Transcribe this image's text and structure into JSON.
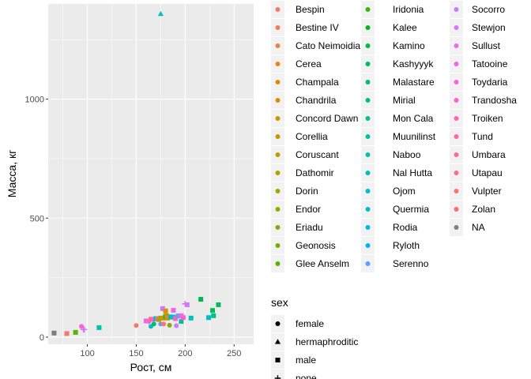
{
  "chart_data": {
    "type": "scatter",
    "xlabel": "Рост, см",
    "ylabel": "Масса, кг",
    "xlim": [
      60,
      270
    ],
    "ylim": [
      -30,
      1400
    ],
    "x_ticks": [
      100,
      150,
      200,
      250
    ],
    "y_ticks": [
      0,
      500,
      1000
    ],
    "grid": true,
    "color_legend": {
      "title": "",
      "entries": [
        {
          "label": "Bespin",
          "color": "#F8766D"
        },
        {
          "label": "Bestine IV",
          "color": "#F37B59"
        },
        {
          "label": "Cato Neimoidia",
          "color": "#ED8141"
        },
        {
          "label": "Cerea",
          "color": "#E7861B"
        },
        {
          "label": "Champala",
          "color": "#E08B00"
        },
        {
          "label": "Chandrila",
          "color": "#D89000"
        },
        {
          "label": "Concord Dawn",
          "color": "#CF9400"
        },
        {
          "label": "Corellia",
          "color": "#C59900"
        },
        {
          "label": "Coruscant",
          "color": "#BB9D00"
        },
        {
          "label": "Dathomir",
          "color": "#AFA100"
        },
        {
          "label": "Dorin",
          "color": "#A3A500"
        },
        {
          "label": "Endor",
          "color": "#95A900"
        },
        {
          "label": "Eriadu",
          "color": "#85AD00"
        },
        {
          "label": "Geonosis",
          "color": "#72B000"
        },
        {
          "label": "Glee Anselm",
          "color": "#5BB300"
        },
        {
          "label": "Iridonia",
          "color": "#39B600"
        },
        {
          "label": "Kalee",
          "color": "#00B81F"
        },
        {
          "label": "Kamino",
          "color": "#00BA42"
        },
        {
          "label": "Kashyyyk",
          "color": "#00BC59"
        },
        {
          "label": "Malastare",
          "color": "#00BE6C"
        },
        {
          "label": "Mirial",
          "color": "#00BF7D"
        },
        {
          "label": "Mon Cala",
          "color": "#00C08D"
        },
        {
          "label": "Muunilinst",
          "color": "#00C19C"
        },
        {
          "label": "Naboo",
          "color": "#00C1AA"
        },
        {
          "label": "Nal Hutta",
          "color": "#00C0B8"
        },
        {
          "label": "Ojom",
          "color": "#00BFC4"
        },
        {
          "label": "Quermia",
          "color": "#00BCD1"
        },
        {
          "label": "Rodia",
          "color": "#00B9E3"
        },
        {
          "label": "Ryloth",
          "color": "#00B5EE"
        },
        {
          "label": "Serenno",
          "color": "#619CFF"
        },
        {
          "label": "Socorro",
          "color": "#C77CFF"
        },
        {
          "label": "Stewjon",
          "color": "#D774F8"
        },
        {
          "label": "Sullust",
          "color": "#E46DF0"
        },
        {
          "label": "Tatooine",
          "color": "#F066EA"
        },
        {
          "label": "Toydaria",
          "color": "#F963DC"
        },
        {
          "label": "Trandosha",
          "color": "#FF61CC"
        },
        {
          "label": "Troiken",
          "color": "#FF62BC"
        },
        {
          "label": "Tund",
          "color": "#FF65AC"
        },
        {
          "label": "Umbara",
          "color": "#FE6A9A"
        },
        {
          "label": "Utapau",
          "color": "#FA6F87"
        },
        {
          "label": "Vulpter",
          "color": "#F8766D"
        },
        {
          "label": "Zolan",
          "color": "#F4706F"
        },
        {
          "label": "NA",
          "color": "#7F7F7F"
        }
      ]
    },
    "shape_legend": {
      "title": "sex",
      "entries": [
        {
          "label": "female",
          "shape": "circle"
        },
        {
          "label": "hermaphroditic",
          "shape": "triangle"
        },
        {
          "label": "male",
          "shape": "square"
        },
        {
          "label": "none",
          "shape": "plus"
        }
      ]
    },
    "points": [
      {
        "x": 175,
        "y": 1358,
        "shape": "triangle",
        "color": "#00BFC4"
      },
      {
        "x": 66,
        "y": 17,
        "shape": "square",
        "color": "#7F7F7F"
      },
      {
        "x": 79,
        "y": 15,
        "shape": "square",
        "color": "#F8766D"
      },
      {
        "x": 88,
        "y": 20,
        "shape": "square",
        "color": "#5BB300"
      },
      {
        "x": 94,
        "y": 45,
        "shape": "circle",
        "color": "#FF61CC"
      },
      {
        "x": 96,
        "y": 32,
        "shape": "plus",
        "color": "#F066EA"
      },
      {
        "x": 97,
        "y": 32,
        "shape": "plus",
        "color": "#C77CFF"
      },
      {
        "x": 112,
        "y": 40,
        "shape": "square",
        "color": "#00C1AA"
      },
      {
        "x": 150,
        "y": 49,
        "shape": "circle",
        "color": "#F8766D"
      },
      {
        "x": 160,
        "y": 68,
        "shape": "square",
        "color": "#F066EA"
      },
      {
        "x": 163,
        "y": 65,
        "shape": "circle",
        "color": "#F966DC"
      },
      {
        "x": 165,
        "y": 45,
        "shape": "circle",
        "color": "#00BFC4"
      },
      {
        "x": 165,
        "y": 75,
        "shape": "square",
        "color": "#F8766D"
      },
      {
        "x": 167,
        "y": 75,
        "shape": "square",
        "color": "#FF61CC"
      },
      {
        "x": 168,
        "y": 55,
        "shape": "circle",
        "color": "#00BE6C"
      },
      {
        "x": 170,
        "y": 78,
        "shape": "square",
        "color": "#00C1AA"
      },
      {
        "x": 171,
        "y": 77,
        "shape": "square",
        "color": "#00BFC4"
      },
      {
        "x": 172,
        "y": 77,
        "shape": "square",
        "color": "#F066EA"
      },
      {
        "x": 173,
        "y": 74,
        "shape": "square",
        "color": "#AFA100"
      },
      {
        "x": 175,
        "y": 80,
        "shape": "square",
        "color": "#BB9D00"
      },
      {
        "x": 175,
        "y": 55,
        "shape": "circle",
        "color": "#619CFF"
      },
      {
        "x": 177,
        "y": 120,
        "shape": "square",
        "color": "#C77CFF"
      },
      {
        "x": 178,
        "y": 80,
        "shape": "square",
        "color": "#D89000"
      },
      {
        "x": 178,
        "y": 55,
        "shape": "circle",
        "color": "#F8766D"
      },
      {
        "x": 180,
        "y": 110,
        "shape": "square",
        "color": "#E08B00"
      },
      {
        "x": 180,
        "y": 87,
        "shape": "square",
        "color": "#00BA42"
      },
      {
        "x": 181,
        "y": 90,
        "shape": "square",
        "color": "#AFA100"
      },
      {
        "x": 182,
        "y": 80,
        "shape": "square",
        "color": "#C59900"
      },
      {
        "x": 183,
        "y": 84,
        "shape": "square",
        "color": "#ED8141"
      },
      {
        "x": 184,
        "y": 50,
        "shape": "circle",
        "color": "#85AD00"
      },
      {
        "x": 185,
        "y": 85,
        "shape": "square",
        "color": "#00C1AA"
      },
      {
        "x": 188,
        "y": 84,
        "shape": "square",
        "color": "#00B9E3"
      },
      {
        "x": 188,
        "y": 113,
        "shape": "square",
        "color": "#F066EA"
      },
      {
        "x": 190,
        "y": 78,
        "shape": "square",
        "color": "#FF65AC"
      },
      {
        "x": 191,
        "y": 48,
        "shape": "circle",
        "color": "#C77CFF"
      },
      {
        "x": 193,
        "y": 89,
        "shape": "square",
        "color": "#619CFF"
      },
      {
        "x": 196,
        "y": 66,
        "shape": "square",
        "color": "#00C19C"
      },
      {
        "x": 196,
        "y": 90,
        "shape": "square",
        "color": "#E46DF0"
      },
      {
        "x": 198,
        "y": 82,
        "shape": "square",
        "color": "#FF61CC"
      },
      {
        "x": 200,
        "y": 140,
        "shape": "plus",
        "color": "#FF61CC"
      },
      {
        "x": 202,
        "y": 136,
        "shape": "square",
        "color": "#C77CFF"
      },
      {
        "x": 206,
        "y": 80,
        "shape": "square",
        "color": "#00C0B8"
      },
      {
        "x": 216,
        "y": 159,
        "shape": "square",
        "color": "#00BA42"
      },
      {
        "x": 224,
        "y": 82,
        "shape": "square",
        "color": "#00BFC4"
      },
      {
        "x": 228,
        "y": 112,
        "shape": "square",
        "color": "#00BC59"
      },
      {
        "x": 229,
        "y": 90,
        "shape": "square",
        "color": "#00C08D"
      },
      {
        "x": 234,
        "y": 136,
        "shape": "square",
        "color": "#00BC59"
      }
    ]
  }
}
